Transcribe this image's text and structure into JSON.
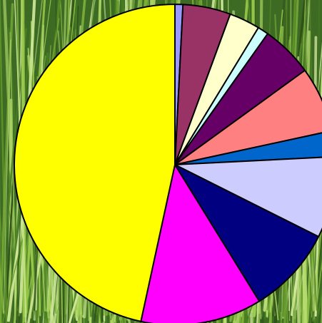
{
  "chart_data": {
    "type": "pie",
    "title": "",
    "start_angle_deg": 0,
    "direction": "clockwise",
    "legend": "none",
    "data_labels": "none",
    "background": "grass-photo",
    "slices": [
      {
        "value": 0.8,
        "color": "#9999FF"
      },
      {
        "value": 4.8,
        "color": "#993366"
      },
      {
        "value": 3.1,
        "color": "#FFFFCC"
      },
      {
        "value": 1.1,
        "color": "#CCFFFF"
      },
      {
        "value": 5.2,
        "color": "#660066"
      },
      {
        "value": 6.6,
        "color": "#FF8080"
      },
      {
        "value": 2.6,
        "color": "#0066CC"
      },
      {
        "value": 8.2,
        "color": "#CCCCFF"
      },
      {
        "value": 8.8,
        "color": "#000080"
      },
      {
        "value": 12.2,
        "color": "#FF00FF"
      },
      {
        "value": 46.6,
        "color": "#FFFF00"
      }
    ]
  }
}
